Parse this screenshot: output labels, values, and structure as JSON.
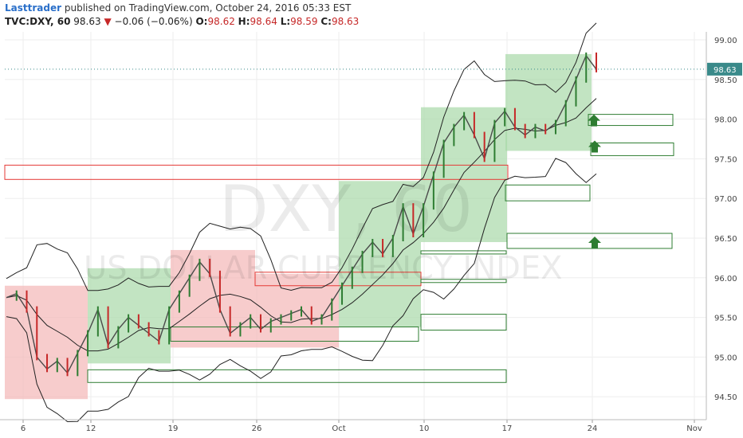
{
  "header": {
    "author": "Lasttrader",
    "published_text": "published on TradingView.com, October 24, 2016 05:33 EST",
    "symbol": "TVC:DXY, 60",
    "last": "98.63",
    "change": "−0.06 (−0.06%)",
    "open_label": "O:",
    "open": "98.62",
    "high_label": "H:",
    "high": "98.64",
    "low_label": "L:",
    "low": "98.59",
    "close_label": "C:",
    "close": "98.63"
  },
  "watermark": {
    "symbol": "DXY, 60",
    "name": "US DOLLAR CURRENCY INDEX"
  },
  "colors": {
    "red_zone": "#f4b6b6",
    "green_zone": "#a8d8a8",
    "red_line": "#e53935",
    "green_line": "#2e7d32",
    "price_label_bg": "#3a8a8a",
    "arrow": "#2e7d32"
  },
  "chart_data": {
    "type": "line",
    "title": "",
    "ylim": [
      94.3,
      99.15
    ],
    "y_ticks": [
      "99.00",
      "98.50",
      "98.00",
      "97.50",
      "97.00",
      "96.50",
      "96.00",
      "95.50",
      "95.00",
      "94.50"
    ],
    "x_ticks": [
      "6",
      "12",
      "19",
      "26",
      "Oct",
      "10",
      "17",
      "24",
      "Nov"
    ],
    "last_price_label": "98.63",
    "last_price": 98.63,
    "series": [
      {
        "values": [
          95.75,
          95.8,
          95.6,
          95.0,
          94.85,
          94.95,
          94.8,
          95.05,
          95.3,
          95.6,
          95.15,
          95.35,
          95.5,
          95.4,
          95.3,
          95.2,
          95.6,
          95.8,
          96.0,
          96.2,
          96.05,
          95.6,
          95.3,
          95.4,
          95.5,
          95.35,
          95.45,
          95.5,
          95.55,
          95.6,
          95.45,
          95.5,
          95.7,
          95.9,
          96.1,
          96.3,
          96.45,
          96.3,
          96.5,
          96.9,
          96.55,
          96.9,
          97.3,
          97.7,
          97.9,
          98.05,
          97.8,
          97.5,
          97.95,
          98.1,
          97.9,
          97.8,
          97.9,
          97.85,
          97.95,
          98.2,
          98.5,
          98.8,
          98.63
        ]
      }
    ]
  }
}
